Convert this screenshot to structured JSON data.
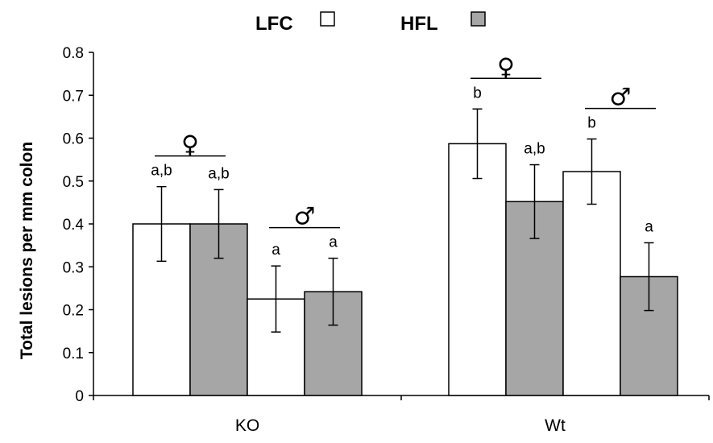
{
  "chart_data": {
    "type": "bar",
    "ylabel": "Total lesions per mm colon",
    "ylim": [
      0,
      0.8
    ],
    "ytick_step": 0.1,
    "yticks": [
      "0",
      "0.1",
      "0.2",
      "0.3",
      "0.4",
      "0.5",
      "0.6",
      "0.7",
      "0.8"
    ],
    "grid": false,
    "legend_position": "top-center",
    "legend": [
      {
        "name": "LFC",
        "color": "#ffffff"
      },
      {
        "name": "HFL",
        "color": "#a6a6a6"
      }
    ],
    "categories": [
      "KO",
      "Wt"
    ],
    "groups": [
      {
        "category": "KO",
        "subgroups": [
          {
            "sex": "♀",
            "bars": [
              {
                "series": "LFC",
                "value": 0.4,
                "error": 0.087,
                "label": "a,b"
              },
              {
                "series": "HFL",
                "value": 0.4,
                "error": 0.08,
                "label": "a,b"
              }
            ]
          },
          {
            "sex": "♂",
            "bars": [
              {
                "series": "LFC",
                "value": 0.225,
                "error": 0.077,
                "label": "a"
              },
              {
                "series": "HFL",
                "value": 0.242,
                "error": 0.078,
                "label": "a"
              }
            ]
          }
        ]
      },
      {
        "category": "Wt",
        "subgroups": [
          {
            "sex": "♀",
            "bars": [
              {
                "series": "LFC",
                "value": 0.587,
                "error": 0.081,
                "label": "b"
              },
              {
                "series": "HFL",
                "value": 0.452,
                "error": 0.086,
                "label": "a,b"
              }
            ]
          },
          {
            "sex": "♂",
            "bars": [
              {
                "series": "LFC",
                "value": 0.522,
                "error": 0.076,
                "label": "b"
              },
              {
                "series": "HFL",
                "value": 0.277,
                "error": 0.079,
                "label": "a"
              }
            ]
          }
        ]
      }
    ]
  }
}
